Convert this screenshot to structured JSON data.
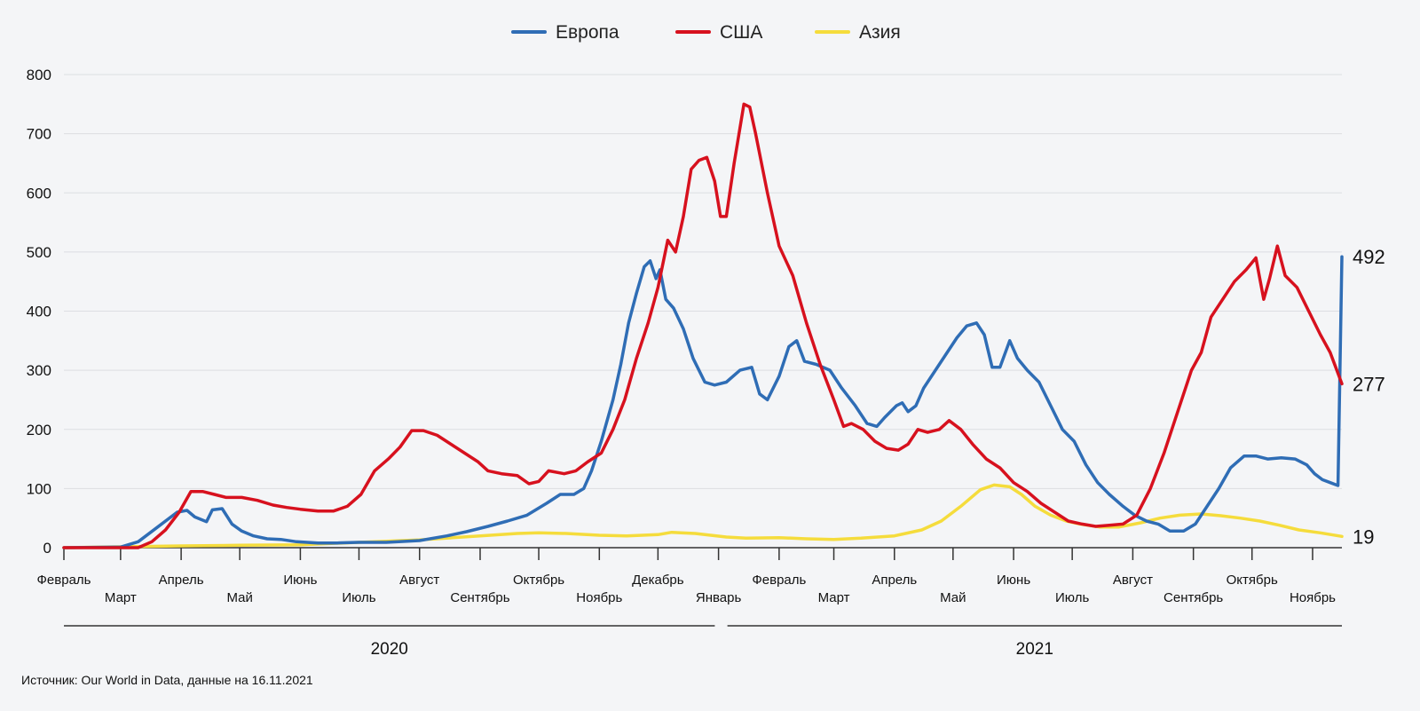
{
  "chart_data": {
    "type": "line",
    "legend": {
      "placement": "top-center"
    },
    "grid": true,
    "ylim": [
      0,
      800
    ],
    "yticks": [
      0,
      100,
      200,
      300,
      400,
      500,
      600,
      700,
      800
    ],
    "x_start": "2020-02-01",
    "x_end": "2021-11-16",
    "month_ticks": [
      {
        "date": "2020-02-01",
        "label": "Февраль"
      },
      {
        "date": "2020-03-01",
        "label": "Март"
      },
      {
        "date": "2020-04-01",
        "label": "Апрель"
      },
      {
        "date": "2020-05-01",
        "label": "Май"
      },
      {
        "date": "2020-06-01",
        "label": "Июнь"
      },
      {
        "date": "2020-07-01",
        "label": "Июль"
      },
      {
        "date": "2020-08-01",
        "label": "Август"
      },
      {
        "date": "2020-09-01",
        "label": "Сентябрь"
      },
      {
        "date": "2020-10-01",
        "label": "Октябрь"
      },
      {
        "date": "2020-11-01",
        "label": "Ноябрь"
      },
      {
        "date": "2020-12-01",
        "label": "Декабрь"
      },
      {
        "date": "2021-01-01",
        "label": "Январь"
      },
      {
        "date": "2021-02-01",
        "label": "Февраль"
      },
      {
        "date": "2021-03-01",
        "label": "Март"
      },
      {
        "date": "2021-04-01",
        "label": "Апрель"
      },
      {
        "date": "2021-05-01",
        "label": "Май"
      },
      {
        "date": "2021-06-01",
        "label": "Июнь"
      },
      {
        "date": "2021-07-01",
        "label": "Июль"
      },
      {
        "date": "2021-08-01",
        "label": "Август"
      },
      {
        "date": "2021-09-01",
        "label": "Сентябрь"
      },
      {
        "date": "2021-10-01",
        "label": "Октябрь"
      },
      {
        "date": "2021-11-01",
        "label": "Ноябрь"
      }
    ],
    "years": [
      {
        "label": "2020",
        "from": "2020-02-01",
        "to": "2020-12-31"
      },
      {
        "label": "2021",
        "from": "2021-01-01",
        "to": "2021-11-16"
      }
    ],
    "series": [
      {
        "name": "Европа",
        "color": "#2f6db5",
        "end_label": "492",
        "points": [
          [
            "2020-02-01",
            0
          ],
          [
            "2020-03-01",
            1
          ],
          [
            "2020-03-10",
            10
          ],
          [
            "2020-03-20",
            35
          ],
          [
            "2020-03-30",
            60
          ],
          [
            "2020-04-04",
            63
          ],
          [
            "2020-04-08",
            52
          ],
          [
            "2020-04-14",
            44
          ],
          [
            "2020-04-17",
            64
          ],
          [
            "2020-04-22",
            66
          ],
          [
            "2020-04-27",
            40
          ],
          [
            "2020-05-02",
            28
          ],
          [
            "2020-05-08",
            20
          ],
          [
            "2020-05-15",
            15
          ],
          [
            "2020-05-22",
            14
          ],
          [
            "2020-05-30",
            10
          ],
          [
            "2020-06-10",
            8
          ],
          [
            "2020-06-20",
            8
          ],
          [
            "2020-07-01",
            9
          ],
          [
            "2020-07-15",
            9
          ],
          [
            "2020-08-01",
            12
          ],
          [
            "2020-08-15",
            20
          ],
          [
            "2020-08-25",
            27
          ],
          [
            "2020-09-05",
            36
          ],
          [
            "2020-09-15",
            45
          ],
          [
            "2020-09-25",
            55
          ],
          [
            "2020-10-05",
            75
          ],
          [
            "2020-10-12",
            90
          ],
          [
            "2020-10-19",
            90
          ],
          [
            "2020-10-24",
            100
          ],
          [
            "2020-10-28",
            130
          ],
          [
            "2020-11-02",
            180
          ],
          [
            "2020-11-08",
            250
          ],
          [
            "2020-11-12",
            310
          ],
          [
            "2020-11-16",
            380
          ],
          [
            "2020-11-20",
            430
          ],
          [
            "2020-11-24",
            475
          ],
          [
            "2020-11-27",
            485
          ],
          [
            "2020-11-30",
            455
          ],
          [
            "2020-12-02",
            470
          ],
          [
            "2020-12-05",
            420
          ],
          [
            "2020-12-09",
            405
          ],
          [
            "2020-12-14",
            370
          ],
          [
            "2020-12-19",
            320
          ],
          [
            "2020-12-25",
            280
          ],
          [
            "2020-12-30",
            275
          ],
          [
            "2021-01-05",
            280
          ],
          [
            "2021-01-12",
            300
          ],
          [
            "2021-01-18",
            305
          ],
          [
            "2021-01-22",
            260
          ],
          [
            "2021-01-26",
            250
          ],
          [
            "2021-02-01",
            290
          ],
          [
            "2021-02-06",
            340
          ],
          [
            "2021-02-10",
            350
          ],
          [
            "2021-02-14",
            315
          ],
          [
            "2021-02-20",
            310
          ],
          [
            "2021-02-27",
            300
          ],
          [
            "2021-03-05",
            270
          ],
          [
            "2021-03-12",
            240
          ],
          [
            "2021-03-18",
            210
          ],
          [
            "2021-03-23",
            205
          ],
          [
            "2021-03-27",
            220
          ],
          [
            "2021-04-02",
            240
          ],
          [
            "2021-04-05",
            245
          ],
          [
            "2021-04-08",
            230
          ],
          [
            "2021-04-12",
            240
          ],
          [
            "2021-04-16",
            270
          ],
          [
            "2021-04-22",
            300
          ],
          [
            "2021-04-28",
            330
          ],
          [
            "2021-05-03",
            355
          ],
          [
            "2021-05-08",
            375
          ],
          [
            "2021-05-13",
            380
          ],
          [
            "2021-05-17",
            360
          ],
          [
            "2021-05-21",
            305
          ],
          [
            "2021-05-25",
            305
          ],
          [
            "2021-05-30",
            350
          ],
          [
            "2021-06-03",
            320
          ],
          [
            "2021-06-08",
            300
          ],
          [
            "2021-06-14",
            280
          ],
          [
            "2021-06-20",
            240
          ],
          [
            "2021-06-26",
            200
          ],
          [
            "2021-07-02",
            180
          ],
          [
            "2021-07-08",
            140
          ],
          [
            "2021-07-14",
            110
          ],
          [
            "2021-07-20",
            90
          ],
          [
            "2021-07-27",
            70
          ],
          [
            "2021-08-02",
            55
          ],
          [
            "2021-08-08",
            45
          ],
          [
            "2021-08-14",
            40
          ],
          [
            "2021-08-20",
            28
          ],
          [
            "2021-08-27",
            28
          ],
          [
            "2021-09-02",
            40
          ],
          [
            "2021-09-08",
            70
          ],
          [
            "2021-09-14",
            100
          ],
          [
            "2021-09-20",
            135
          ],
          [
            "2021-09-27",
            155
          ],
          [
            "2021-10-03",
            155
          ],
          [
            "2021-10-09",
            150
          ],
          [
            "2021-10-16",
            152
          ],
          [
            "2021-10-23",
            150
          ],
          [
            "2021-10-29",
            140
          ],
          [
            "2021-11-02",
            125
          ],
          [
            "2021-11-06",
            115
          ],
          [
            "2021-11-10",
            110
          ],
          [
            "2021-11-14",
            105
          ],
          [
            "2021-11-16",
            492
          ]
        ]
      },
      {
        "name": "США",
        "color": "#d7111e",
        "end_label": "277",
        "points": [
          [
            "2020-02-01",
            0
          ],
          [
            "2020-03-10",
            0
          ],
          [
            "2020-03-17",
            10
          ],
          [
            "2020-03-24",
            30
          ],
          [
            "2020-03-31",
            60
          ],
          [
            "2020-04-06",
            95
          ],
          [
            "2020-04-12",
            95
          ],
          [
            "2020-04-18",
            90
          ],
          [
            "2020-04-24",
            85
          ],
          [
            "2020-05-02",
            85
          ],
          [
            "2020-05-10",
            80
          ],
          [
            "2020-05-18",
            72
          ],
          [
            "2020-05-25",
            68
          ],
          [
            "2020-06-01",
            65
          ],
          [
            "2020-06-10",
            62
          ],
          [
            "2020-06-18",
            62
          ],
          [
            "2020-06-25",
            70
          ],
          [
            "2020-07-02",
            90
          ],
          [
            "2020-07-09",
            130
          ],
          [
            "2020-07-16",
            150
          ],
          [
            "2020-07-22",
            170
          ],
          [
            "2020-07-28",
            198
          ],
          [
            "2020-08-03",
            198
          ],
          [
            "2020-08-10",
            190
          ],
          [
            "2020-08-17",
            175
          ],
          [
            "2020-08-24",
            160
          ],
          [
            "2020-08-31",
            145
          ],
          [
            "2020-09-05",
            130
          ],
          [
            "2020-09-12",
            125
          ],
          [
            "2020-09-20",
            122
          ],
          [
            "2020-09-26",
            108
          ],
          [
            "2020-10-01",
            112
          ],
          [
            "2020-10-06",
            130
          ],
          [
            "2020-10-14",
            125
          ],
          [
            "2020-10-20",
            130
          ],
          [
            "2020-10-26",
            145
          ],
          [
            "2020-11-02",
            160
          ],
          [
            "2020-11-08",
            200
          ],
          [
            "2020-11-14",
            250
          ],
          [
            "2020-11-20",
            320
          ],
          [
            "2020-11-26",
            380
          ],
          [
            "2020-12-01",
            440
          ],
          [
            "2020-12-06",
            520
          ],
          [
            "2020-12-10",
            500
          ],
          [
            "2020-12-14",
            560
          ],
          [
            "2020-12-18",
            640
          ],
          [
            "2020-12-22",
            655
          ],
          [
            "2020-12-26",
            660
          ],
          [
            "2020-12-30",
            620
          ],
          [
            "2021-01-02",
            560
          ],
          [
            "2021-01-05",
            560
          ],
          [
            "2021-01-09",
            650
          ],
          [
            "2021-01-14",
            750
          ],
          [
            "2021-01-17",
            745
          ],
          [
            "2021-01-20",
            700
          ],
          [
            "2021-01-26",
            600
          ],
          [
            "2021-02-01",
            510
          ],
          [
            "2021-02-08",
            460
          ],
          [
            "2021-02-15",
            380
          ],
          [
            "2021-02-22",
            310
          ],
          [
            "2021-03-01",
            250
          ],
          [
            "2021-03-06",
            205
          ],
          [
            "2021-03-10",
            210
          ],
          [
            "2021-03-16",
            200
          ],
          [
            "2021-03-22",
            180
          ],
          [
            "2021-03-28",
            168
          ],
          [
            "2021-04-03",
            165
          ],
          [
            "2021-04-08",
            175
          ],
          [
            "2021-04-13",
            200
          ],
          [
            "2021-04-18",
            195
          ],
          [
            "2021-04-24",
            200
          ],
          [
            "2021-04-29",
            215
          ],
          [
            "2021-05-05",
            200
          ],
          [
            "2021-05-11",
            175
          ],
          [
            "2021-05-18",
            150
          ],
          [
            "2021-05-25",
            135
          ],
          [
            "2021-06-01",
            110
          ],
          [
            "2021-06-08",
            95
          ],
          [
            "2021-06-15",
            75
          ],
          [
            "2021-06-22",
            60
          ],
          [
            "2021-06-29",
            45
          ],
          [
            "2021-07-06",
            40
          ],
          [
            "2021-07-13",
            36
          ],
          [
            "2021-07-20",
            38
          ],
          [
            "2021-07-27",
            40
          ],
          [
            "2021-08-03",
            55
          ],
          [
            "2021-08-10",
            100
          ],
          [
            "2021-08-17",
            160
          ],
          [
            "2021-08-24",
            230
          ],
          [
            "2021-08-31",
            300
          ],
          [
            "2021-09-05",
            330
          ],
          [
            "2021-09-10",
            390
          ],
          [
            "2021-09-16",
            420
          ],
          [
            "2021-09-22",
            450
          ],
          [
            "2021-09-28",
            470
          ],
          [
            "2021-10-03",
            490
          ],
          [
            "2021-10-07",
            420
          ],
          [
            "2021-10-10",
            455
          ],
          [
            "2021-10-14",
            510
          ],
          [
            "2021-10-18",
            460
          ],
          [
            "2021-10-24",
            440
          ],
          [
            "2021-10-30",
            400
          ],
          [
            "2021-11-05",
            360
          ],
          [
            "2021-11-10",
            330
          ],
          [
            "2021-11-16",
            277
          ]
        ]
      },
      {
        "name": "Азия",
        "color": "#f5dc3c",
        "end_label": "19",
        "points": [
          [
            "2020-02-01",
            0
          ],
          [
            "2020-04-01",
            3
          ],
          [
            "2020-05-01",
            4
          ],
          [
            "2020-06-01",
            5
          ],
          [
            "2020-07-01",
            9
          ],
          [
            "2020-08-01",
            13
          ],
          [
            "2020-09-01",
            20
          ],
          [
            "2020-09-20",
            24
          ],
          [
            "2020-10-01",
            25
          ],
          [
            "2020-10-15",
            24
          ],
          [
            "2020-11-01",
            21
          ],
          [
            "2020-11-15",
            20
          ],
          [
            "2020-12-01",
            22
          ],
          [
            "2020-12-08",
            26
          ],
          [
            "2020-12-20",
            24
          ],
          [
            "2021-01-05",
            18
          ],
          [
            "2021-01-15",
            16
          ],
          [
            "2021-02-01",
            17
          ],
          [
            "2021-02-15",
            15
          ],
          [
            "2021-03-01",
            14
          ],
          [
            "2021-03-15",
            16
          ],
          [
            "2021-04-01",
            20
          ],
          [
            "2021-04-15",
            30
          ],
          [
            "2021-04-25",
            45
          ],
          [
            "2021-05-05",
            70
          ],
          [
            "2021-05-15",
            98
          ],
          [
            "2021-05-22",
            106
          ],
          [
            "2021-05-30",
            103
          ],
          [
            "2021-06-05",
            90
          ],
          [
            "2021-06-12",
            70
          ],
          [
            "2021-06-20",
            55
          ],
          [
            "2021-06-28",
            45
          ],
          [
            "2021-07-05",
            40
          ],
          [
            "2021-07-15",
            35
          ],
          [
            "2021-07-25",
            35
          ],
          [
            "2021-08-05",
            42
          ],
          [
            "2021-08-15",
            50
          ],
          [
            "2021-08-25",
            55
          ],
          [
            "2021-09-05",
            57
          ],
          [
            "2021-09-15",
            54
          ],
          [
            "2021-09-25",
            50
          ],
          [
            "2021-10-05",
            45
          ],
          [
            "2021-10-15",
            38
          ],
          [
            "2021-10-25",
            30
          ],
          [
            "2021-11-05",
            25
          ],
          [
            "2021-11-16",
            19
          ]
        ]
      }
    ]
  },
  "source_note": "Источник: Our World in Data, данные на 16.11.2021"
}
